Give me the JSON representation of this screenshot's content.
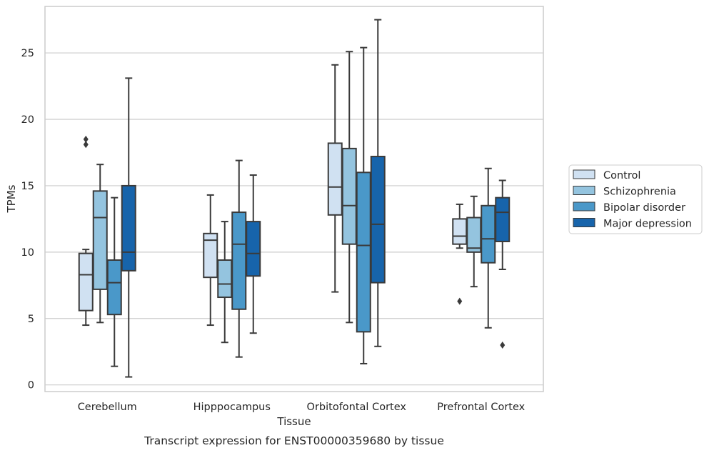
{
  "chart_data": {
    "type": "boxplot",
    "xlabel": "Tissue",
    "ylabel": "TPMs",
    "caption": "Transcript expression for ENST00000359680 by tissue",
    "ylim": [
      -0.5,
      28.5
    ],
    "yticks": [
      0,
      5,
      10,
      15,
      20,
      25
    ],
    "grid": "horizontal",
    "legend_position": "right",
    "categories": [
      "Cerebellum",
      "Hipppocampus",
      "Orbitofontal Cortex",
      "Prefrontal Cortex"
    ],
    "series": [
      {
        "name": "Control",
        "color": "#d0e1f2",
        "boxes": [
          {
            "whislo": 4.5,
            "q1": 5.6,
            "med": 8.3,
            "q3": 9.9,
            "whishi": 10.2,
            "fliers": [
              18.1,
              18.5
            ]
          },
          {
            "whislo": 4.5,
            "q1": 8.1,
            "med": 10.9,
            "q3": 11.4,
            "whishi": 14.3,
            "fliers": []
          },
          {
            "whislo": 7.0,
            "q1": 12.8,
            "med": 14.9,
            "q3": 18.2,
            "whishi": 24.1,
            "fliers": []
          },
          {
            "whislo": 10.3,
            "q1": 10.6,
            "med": 11.2,
            "q3": 12.5,
            "whishi": 13.6,
            "fliers": [
              6.3
            ]
          }
        ]
      },
      {
        "name": "Schizophrenia",
        "color": "#94c4df",
        "boxes": [
          {
            "whislo": 4.7,
            "q1": 7.2,
            "med": 12.6,
            "q3": 14.6,
            "whishi": 16.6,
            "fliers": []
          },
          {
            "whislo": 3.2,
            "q1": 6.6,
            "med": 7.6,
            "q3": 9.4,
            "whishi": 12.3,
            "fliers": []
          },
          {
            "whislo": 4.7,
            "q1": 10.6,
            "med": 13.5,
            "q3": 17.8,
            "whishi": 25.1,
            "fliers": []
          },
          {
            "whislo": 7.4,
            "q1": 10.0,
            "med": 10.3,
            "q3": 12.6,
            "whishi": 14.2,
            "fliers": []
          }
        ]
      },
      {
        "name": "Bipolar disorder",
        "color": "#4a98c9",
        "boxes": [
          {
            "whislo": 1.4,
            "q1": 5.3,
            "med": 7.7,
            "q3": 9.4,
            "whishi": 14.1,
            "fliers": []
          },
          {
            "whislo": 2.1,
            "q1": 5.7,
            "med": 10.6,
            "q3": 13.0,
            "whishi": 16.9,
            "fliers": []
          },
          {
            "whislo": 1.6,
            "q1": 4.0,
            "med": 10.5,
            "q3": 16.0,
            "whishi": 25.4,
            "fliers": []
          },
          {
            "whislo": 4.3,
            "q1": 9.2,
            "med": 11.0,
            "q3": 13.5,
            "whishi": 16.3,
            "fliers": []
          }
        ]
      },
      {
        "name": "Major depression",
        "color": "#1764ab",
        "boxes": [
          {
            "whislo": 0.6,
            "q1": 8.6,
            "med": 10.0,
            "q3": 15.0,
            "whishi": 23.1,
            "fliers": []
          },
          {
            "whislo": 3.9,
            "q1": 8.2,
            "med": 9.9,
            "q3": 12.3,
            "whishi": 15.8,
            "fliers": []
          },
          {
            "whislo": 2.9,
            "q1": 7.7,
            "med": 12.1,
            "q3": 17.2,
            "whishi": 27.5,
            "fliers": []
          },
          {
            "whislo": 8.7,
            "q1": 10.8,
            "med": 13.0,
            "q3": 14.1,
            "whishi": 15.4,
            "fliers": [
              3.0
            ]
          }
        ]
      }
    ]
  }
}
